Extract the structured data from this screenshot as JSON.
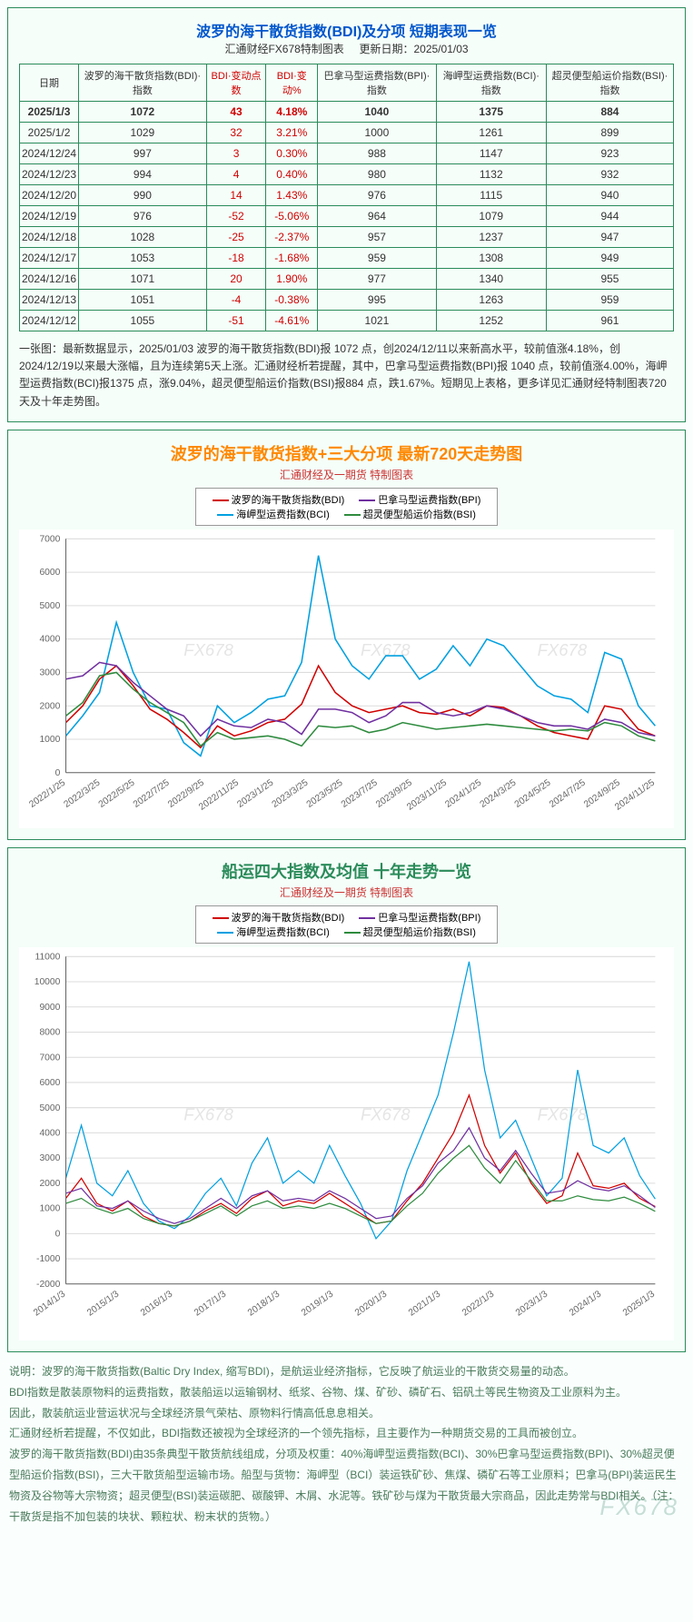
{
  "table_panel": {
    "title": "波罗的海干散货指数(BDI)及分项  短期表现一览",
    "subtitle_left": "汇通财经FX678特制图表",
    "subtitle_right": "更新日期：2025/01/03",
    "title_color": "#0055cc",
    "title_fontsize": 19,
    "columns": [
      "日期",
      "波罗的海干散货指数(BDI)·指数",
      "BDI·变动点数",
      "BDI·变动%",
      "巴拿马型运费指数(BPI)·指数",
      "海岬型运费指数(BCI)·指数",
      "超灵便型船运价指数(BSI)·指数"
    ],
    "header_red_cols": [
      2,
      3
    ],
    "bold_first_row": true,
    "rows": [
      [
        "2025/1/3",
        "1072",
        "43",
        "4.18%",
        "1040",
        "1375",
        "884"
      ],
      [
        "2025/1/2",
        "1029",
        "32",
        "3.21%",
        "1000",
        "1261",
        "899"
      ],
      [
        "2024/12/24",
        "997",
        "3",
        "0.30%",
        "988",
        "1147",
        "923"
      ],
      [
        "2024/12/23",
        "994",
        "4",
        "0.40%",
        "980",
        "1132",
        "932"
      ],
      [
        "2024/12/20",
        "990",
        "14",
        "1.43%",
        "976",
        "1115",
        "940"
      ],
      [
        "2024/12/19",
        "976",
        "-52",
        "-5.06%",
        "964",
        "1079",
        "944"
      ],
      [
        "2024/12/18",
        "1028",
        "-25",
        "-2.37%",
        "957",
        "1237",
        "947"
      ],
      [
        "2024/12/17",
        "1053",
        "-18",
        "-1.68%",
        "959",
        "1308",
        "949"
      ],
      [
        "2024/12/16",
        "1071",
        "20",
        "1.90%",
        "977",
        "1340",
        "955"
      ],
      [
        "2024/12/13",
        "1051",
        "-4",
        "-0.38%",
        "995",
        "1263",
        "959"
      ],
      [
        "2024/12/12",
        "1055",
        "-51",
        "-4.61%",
        "1021",
        "1252",
        "961"
      ]
    ],
    "footnote": "一张图：最新数据显示，2025/01/03 波罗的海干散货指数(BDI)报 1072 点，创2024/12/11以来新高水平，较前值涨4.18%，创2024/12/19以来最大涨幅，且为连续第5天上涨。汇通财经析若提醒，其中，巴拿马型运费指数(BPI)报 1040 点，较前值涨4.00%，海岬型运费指数(BCI)报1375 点，涨9.04%，超灵便型船运价指数(BSI)报884 点，跌1.67%。短期见上表格，更多详见汇通财经特制图表720天及十年走势图。",
    "border_color": "#2a8b5a",
    "bg_color": "#f5fef9"
  },
  "chart1": {
    "type": "line",
    "title": "波罗的海干散货指数+三大分项  最新720天走势图",
    "title_color": "#ff8800",
    "title_fontsize": 18,
    "subtitle": "汇通财经及一期货  特制图表",
    "subtitle_color": "#cc3333",
    "legend_items": [
      {
        "label": "波罗的海干散货指数(BDI)",
        "color": "#d00000"
      },
      {
        "label": "巴拿马型运费指数(BPI)",
        "color": "#7030a0"
      },
      {
        "label": "海岬型运费指数(BCI)",
        "color": "#00a0e0"
      },
      {
        "label": "超灵便型船运价指数(BSI)",
        "color": "#2e8b3e"
      }
    ],
    "ylim": [
      0,
      7000
    ],
    "ytick_step": 1000,
    "x_labels": [
      "2022/1/25",
      "2022/3/25",
      "2022/5/25",
      "2022/7/25",
      "2022/9/25",
      "2022/11/25",
      "2023/1/25",
      "2023/3/25",
      "2023/5/25",
      "2023/7/25",
      "2023/9/25",
      "2023/11/25",
      "2024/1/25",
      "2024/3/25",
      "2024/5/25",
      "2024/7/25",
      "2024/9/25",
      "2024/11/25"
    ],
    "grid_color": "#dcdcdc",
    "bg_color": "#ffffff",
    "label_fontsize": 10,
    "axis_color": "#666",
    "line_width": 1.5,
    "watermarks": [
      "FX678",
      "FX678",
      "FX678"
    ],
    "series": {
      "bdi": [
        1500,
        2000,
        2800,
        3200,
        2600,
        1900,
        1600,
        1200,
        750,
        1400,
        1100,
        1250,
        1500,
        1600,
        2050,
        3200,
        2400,
        2000,
        1800,
        1900,
        2000,
        1800,
        1750,
        1900,
        1700,
        2000,
        1950,
        1700,
        1400,
        1200,
        1100,
        1000,
        2000,
        1900,
        1300,
        1100
      ],
      "bpi": [
        2800,
        2900,
        3300,
        3200,
        2700,
        2300,
        1900,
        1700,
        1100,
        1600,
        1400,
        1350,
        1600,
        1500,
        1150,
        1900,
        1900,
        1800,
        1500,
        1700,
        2100,
        2100,
        1800,
        1700,
        1800,
        2000,
        1900,
        1700,
        1500,
        1400,
        1400,
        1300,
        1600,
        1500,
        1200,
        1100
      ],
      "bci": [
        1100,
        1700,
        2400,
        4500,
        3000,
        2000,
        1900,
        900,
        500,
        2000,
        1500,
        1800,
        2200,
        2300,
        3300,
        6500,
        4000,
        3200,
        2800,
        3500,
        3500,
        2800,
        3100,
        3800,
        3200,
        4000,
        3800,
        3200,
        2600,
        2300,
        2200,
        1800,
        3600,
        3400,
        2000,
        1400
      ],
      "bsi": [
        1700,
        2100,
        2900,
        3000,
        2500,
        2100,
        1800,
        1500,
        800,
        1200,
        1000,
        1050,
        1100,
        1000,
        800,
        1400,
        1350,
        1400,
        1200,
        1300,
        1500,
        1400,
        1300,
        1350,
        1400,
        1450,
        1400,
        1350,
        1300,
        1250,
        1300,
        1250,
        1500,
        1400,
        1100,
        950
      ]
    }
  },
  "chart2": {
    "type": "line",
    "title": "船运四大指数及均值 十年走势一览",
    "title_color": "#2a8b5a",
    "title_fontsize": 18,
    "subtitle": "汇通财经及一期货 特制图表",
    "subtitle_color": "#cc3333",
    "legend_items": [
      {
        "label": "波罗的海干散货指数(BDI)",
        "color": "#d00000"
      },
      {
        "label": "巴拿马型运费指数(BPI)",
        "color": "#7030a0"
      },
      {
        "label": "海岬型运费指数(BCI)",
        "color": "#00a0e0"
      },
      {
        "label": "超灵便型船运价指数(BSI)",
        "color": "#2e8b3e"
      }
    ],
    "ylim": [
      -2000,
      11000
    ],
    "ytick_step": 1000,
    "x_labels": [
      "2014/1/3",
      "2015/1/3",
      "2016/1/3",
      "2017/1/3",
      "2018/1/3",
      "2019/1/3",
      "2020/1/3",
      "2021/1/3",
      "2022/1/3",
      "2023/1/3",
      "2024/1/3",
      "2025/1/3"
    ],
    "grid_color": "#dcdcdc",
    "bg_color": "#ffffff",
    "label_fontsize": 10,
    "axis_color": "#666",
    "line_width": 1.2,
    "watermarks": [
      "FX678",
      "FX678",
      "FX678"
    ],
    "series": {
      "bdi": [
        1400,
        2200,
        1200,
        900,
        1300,
        700,
        400,
        300,
        500,
        900,
        1200,
        800,
        1400,
        1700,
        1100,
        1300,
        1200,
        1600,
        1200,
        800,
        400,
        500,
        1300,
        2000,
        3000,
        4000,
        5500,
        3500,
        2400,
        3200,
        2000,
        1200,
        1500,
        3200,
        1900,
        1800,
        2000,
        1400,
        1072
      ],
      "bpi": [
        1600,
        1800,
        1100,
        1000,
        1300,
        900,
        600,
        400,
        600,
        1000,
        1400,
        1000,
        1500,
        1700,
        1300,
        1400,
        1300,
        1700,
        1400,
        1000,
        600,
        700,
        1400,
        1900,
        2800,
        3300,
        4200,
        3000,
        2500,
        3300,
        2400,
        1600,
        1700,
        2100,
        1800,
        1700,
        1900,
        1500,
        1040
      ],
      "bci": [
        2200,
        4300,
        2000,
        1500,
        2500,
        1200,
        500,
        200,
        700,
        1600,
        2200,
        1100,
        2800,
        3800,
        2000,
        2500,
        2000,
        3500,
        2300,
        1200,
        -200,
        500,
        2500,
        4000,
        5500,
        8000,
        10800,
        6500,
        3800,
        4500,
        3000,
        1500,
        2200,
        6500,
        3500,
        3200,
        3800,
        2300,
        1375
      ],
      "bsi": [
        1200,
        1400,
        1000,
        800,
        1000,
        600,
        400,
        300,
        500,
        800,
        1100,
        700,
        1100,
        1300,
        1000,
        1100,
        1000,
        1200,
        1000,
        700,
        400,
        500,
        1100,
        1600,
        2400,
        3000,
        3500,
        2600,
        2000,
        2900,
        2100,
        1300,
        1300,
        1500,
        1350,
        1300,
        1450,
        1200,
        884
      ]
    }
  },
  "description": {
    "color": "#4a7a5a",
    "lines": [
      "说明：波罗的海干散货指数(Baltic Dry Index, 缩写BDI)，是航运业经济指标，它反映了航运业的干散货交易量的动态。",
      "BDI指数是散装原物料的运费指数，散装船运以运输钢材、纸浆、谷物、煤、矿砂、磷矿石、铝矾土等民生物资及工业原料为主。",
      "因此，散装航运业营运状况与全球经济景气荣枯、原物料行情高低息息相关。",
      "汇通财经析若提醒，不仅如此，BDI指数还被视为全球经济的一个领先指标，且主要作为一种期货交易的工具而被创立。",
      "波罗的海干散货指数(BDI)由35条典型干散货航线组成，分项及权重：40%海岬型运费指数(BCI)、30%巴拿马型运费指数(BPI)、30%超灵便型船运价指数(BSI)，三大干散货船型运输市场。船型与货物：海岬型（BCI）装运铁矿砂、焦煤、磷矿石等工业原料；巴拿马(BPI)装运民生物资及谷物等大宗物资；超灵便型(BSI)装运碳肥、碳酸钾、木屑、水泥等。铁矿砂与煤为干散货最大宗商品，因此走势常与BDI相关。（注：干散货是指不加包装的块状、颗粒状、粉末状的货物。）"
    ]
  },
  "footer_watermark": "FX678"
}
